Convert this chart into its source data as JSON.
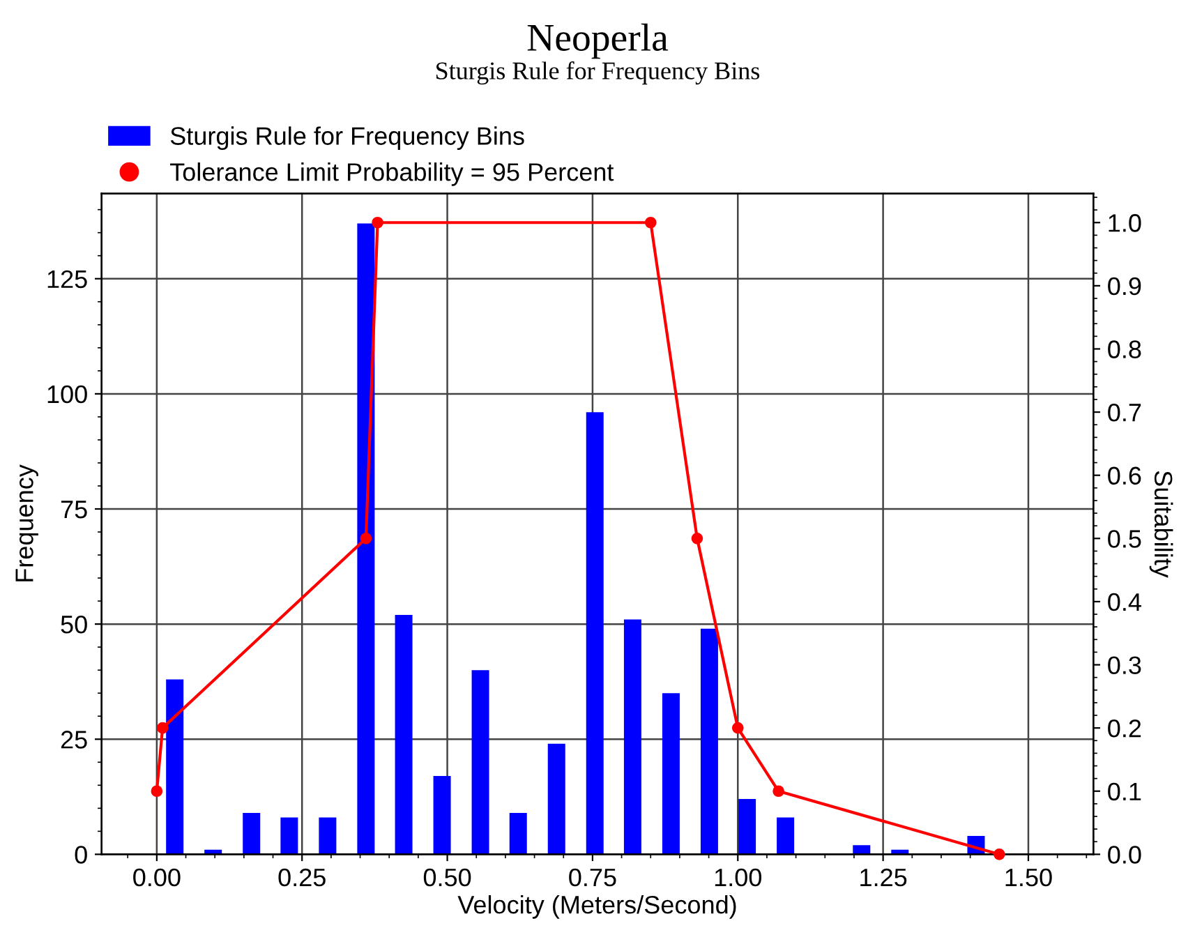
{
  "chart_data": {
    "type": "bar",
    "title": "Neoperla",
    "subtitle": "Sturgis Rule for Frequency Bins",
    "xlabel": "Velocity (Meters/Second)",
    "ylabel": "Frequency",
    "y2label": "Suitability",
    "series": [
      {
        "name": "Sturgis Rule for Frequency Bins",
        "color": "#0000ff",
        "x": [
          0.031,
          0.097,
          0.163,
          0.228,
          0.294,
          0.36,
          0.425,
          0.491,
          0.557,
          0.622,
          0.688,
          0.754,
          0.819,
          0.885,
          0.951,
          1.016,
          1.082,
          1.148,
          1.213,
          1.279,
          1.345,
          1.41
        ],
        "values": [
          38,
          1,
          9,
          8,
          8,
          137,
          52,
          17,
          40,
          9,
          24,
          96,
          51,
          35,
          49,
          12,
          8,
          0,
          2,
          1,
          0,
          4
        ]
      },
      {
        "name": "Tolerance Limit Probability = 95 Percent",
        "type": "line",
        "axis": "y2",
        "color": "#ff0000",
        "marker": "circle",
        "x": [
          0.0,
          0.01,
          0.36,
          0.38,
          0.85,
          0.93,
          1.0,
          1.07,
          1.45
        ],
        "values": [
          0.1,
          0.2,
          0.5,
          1.0,
          1.0,
          0.5,
          0.2,
          0.1,
          0.0
        ]
      }
    ],
    "xlim": [
      -0.095,
      1.612
    ],
    "xticks": [
      {
        "value": 0,
        "label": "0.00"
      },
      {
        "value": 0.25,
        "label": "0.25"
      },
      {
        "value": 0.5,
        "label": "0.50"
      },
      {
        "value": 0.75,
        "label": "0.75"
      },
      {
        "value": 1.0,
        "label": "1.00"
      },
      {
        "value": 1.25,
        "label": "1.25"
      },
      {
        "value": 1.5,
        "label": "1.50"
      }
    ],
    "ylim": [
      0,
      143.5
    ],
    "yticks": [
      0,
      25,
      50,
      75,
      100,
      125
    ],
    "y2lim": [
      0,
      1.046
    ],
    "y2ticks": [
      {
        "value": 0,
        "label": "0.0"
      },
      {
        "value": 0.1,
        "label": "0.1"
      },
      {
        "value": 0.2,
        "label": "0.2"
      },
      {
        "value": 0.3,
        "label": "0.3"
      },
      {
        "value": 0.4,
        "label": "0.4"
      },
      {
        "value": 0.5,
        "label": "0.5"
      },
      {
        "value": 0.6,
        "label": "0.6"
      },
      {
        "value": 0.7,
        "label": "0.7"
      },
      {
        "value": 0.8,
        "label": "0.8"
      },
      {
        "value": 0.9,
        "label": "0.9"
      },
      {
        "value": 1.0,
        "label": "1.0"
      }
    ],
    "grid": true,
    "legend": "top left"
  }
}
